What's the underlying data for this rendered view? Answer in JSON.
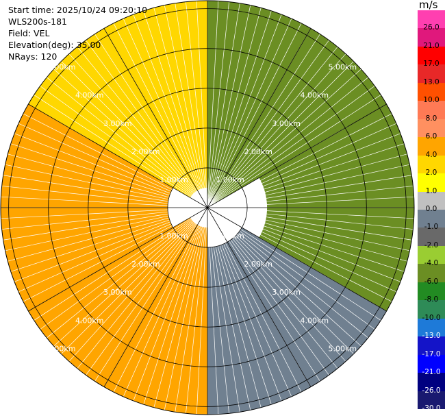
{
  "info": {
    "start_time": "Start time: 2025/10/24 09:20:10",
    "site": "WLS200s-181",
    "field": "Field: VEL",
    "elevation": "Elevation(deg): 35.00",
    "nrays": "NRays: 120"
  },
  "colorbar": {
    "unit": "m/s",
    "ticks": [
      "26.0",
      "21.0",
      "17.0",
      "13.0",
      "10.0",
      "8.0",
      "6.0",
      "4.0",
      "2.0",
      "1.0",
      "0.0",
      "-1.0",
      "-2.0",
      "-4.0",
      "-6.0",
      "-8.0",
      "-10.0",
      "-13.0",
      "-17.0",
      "-21.0",
      "-26.0",
      "-30.0"
    ],
    "colors": [
      "#ff3fb0",
      "#e0187c",
      "#ff0000",
      "#e82828",
      "#ff5000",
      "#ff7a55",
      "#ff9060",
      "#ffa500",
      "#ffd700",
      "#ffff00",
      "#c0c0c0",
      "#708090",
      "#696969",
      "#9acd32",
      "#6b8e23",
      "#228b22",
      "#2e8b57",
      "#1e7ad8",
      "#1414c8",
      "#0000ff",
      "#000080",
      "#191970"
    ]
  },
  "chart_data": {
    "type": "ppi",
    "field": "VEL",
    "units": "m/s",
    "elevation_deg": 35.0,
    "n_rays": 120,
    "range_ring_labels_km": [
      1.0,
      2.0,
      3.0,
      4.0,
      5.0
    ],
    "range_ring_label_text": [
      "1.00km",
      "2.00km",
      "3.00km",
      "4.00km",
      "5.00km"
    ],
    "max_range_km": 5.2,
    "spokes_deg": [
      0,
      30,
      60,
      90,
      120,
      150
    ],
    "value_range": [
      -30,
      26
    ],
    "sectors": [
      {
        "azimuth_from_deg": 0,
        "azimuth_to_deg": 60,
        "inner_km": 0.0,
        "value": -6.0
      },
      {
        "azimuth_from_deg": 60,
        "azimuth_to_deg": 120,
        "inner_km": 1.5,
        "value": -5.0
      },
      {
        "azimuth_from_deg": 120,
        "azimuth_to_deg": 180,
        "inner_km": 1.0,
        "value": -1.0
      },
      {
        "azimuth_from_deg": 180,
        "azimuth_to_deg": 240,
        "inner_km": 0.5,
        "value": 4.0
      },
      {
        "azimuth_from_deg": 240,
        "azimuth_to_deg": 300,
        "inner_km": 1.0,
        "value": 5.0
      },
      {
        "azimuth_from_deg": 300,
        "azimuth_to_deg": 360,
        "inner_km": 0.5,
        "value": 2.0
      }
    ]
  }
}
